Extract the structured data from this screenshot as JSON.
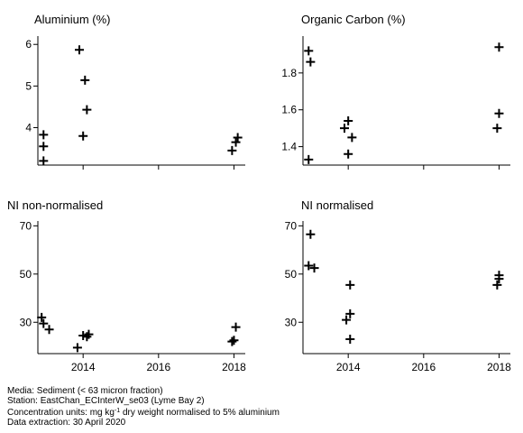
{
  "chart_data": [
    {
      "type": "scatter",
      "title": "Aluminium (%)",
      "xlim": [
        2012.8,
        2018.3
      ],
      "ylim": [
        3.1,
        6.2
      ],
      "x_ticks": [],
      "y_ticks": [
        4,
        5,
        6
      ],
      "points": [
        {
          "x": 2012.95,
          "y": 3.83
        },
        {
          "x": 2012.95,
          "y": 3.55
        },
        {
          "x": 2012.95,
          "y": 3.2
        },
        {
          "x": 2013.9,
          "y": 5.87
        },
        {
          "x": 2014.05,
          "y": 5.14
        },
        {
          "x": 2014.1,
          "y": 4.43
        },
        {
          "x": 2014.0,
          "y": 3.8
        },
        {
          "x": 2017.95,
          "y": 3.45
        },
        {
          "x": 2018.05,
          "y": 3.65
        },
        {
          "x": 2018.1,
          "y": 3.76
        }
      ]
    },
    {
      "type": "scatter",
      "title": "Organic Carbon (%)",
      "xlim": [
        2012.8,
        2018.3
      ],
      "ylim": [
        1.3,
        2.0
      ],
      "x_ticks": [],
      "y_ticks": [
        1.4,
        1.6,
        1.8
      ],
      "points": [
        {
          "x": 2012.95,
          "y": 1.92
        },
        {
          "x": 2013.0,
          "y": 1.86
        },
        {
          "x": 2012.95,
          "y": 1.33
        },
        {
          "x": 2014.0,
          "y": 1.54
        },
        {
          "x": 2013.9,
          "y": 1.5
        },
        {
          "x": 2014.1,
          "y": 1.45
        },
        {
          "x": 2014.0,
          "y": 1.36
        },
        {
          "x": 2018.0,
          "y": 1.94
        },
        {
          "x": 2018.0,
          "y": 1.58
        },
        {
          "x": 2017.95,
          "y": 1.5
        }
      ]
    },
    {
      "type": "scatter",
      "title": "NI non-normalised",
      "xlim": [
        2012.8,
        2018.3
      ],
      "ylim": [
        17,
        72
      ],
      "x_ticks": [
        "2014",
        "2016",
        "2018"
      ],
      "y_ticks": [
        30,
        50,
        70
      ],
      "points": [
        {
          "x": 2012.9,
          "y": 32
        },
        {
          "x": 2012.95,
          "y": 29.5
        },
        {
          "x": 2013.1,
          "y": 27
        },
        {
          "x": 2014.0,
          "y": 24.5
        },
        {
          "x": 2014.15,
          "y": 25
        },
        {
          "x": 2014.1,
          "y": 24
        },
        {
          "x": 2013.85,
          "y": 19.5
        },
        {
          "x": 2018.05,
          "y": 28
        },
        {
          "x": 2018.0,
          "y": 22.5
        },
        {
          "x": 2017.95,
          "y": 22
        }
      ]
    },
    {
      "type": "scatter",
      "title": "NI normalised",
      "xlim": [
        2012.8,
        2018.3
      ],
      "ylim": [
        17,
        72
      ],
      "x_ticks": [
        "2014",
        "2016",
        "2018"
      ],
      "y_ticks": [
        30,
        50,
        70
      ],
      "points": [
        {
          "x": 2013.0,
          "y": 66.5
        },
        {
          "x": 2012.95,
          "y": 53.5
        },
        {
          "x": 2013.1,
          "y": 52.5
        },
        {
          "x": 2014.05,
          "y": 45.5
        },
        {
          "x": 2014.05,
          "y": 33.5
        },
        {
          "x": 2013.95,
          "y": 31
        },
        {
          "x": 2014.05,
          "y": 23
        },
        {
          "x": 2018.0,
          "y": 49.5
        },
        {
          "x": 2018.0,
          "y": 48
        },
        {
          "x": 2017.95,
          "y": 45.5
        }
      ]
    }
  ],
  "footer": {
    "media": "Media: Sediment (< 63 micron fraction)",
    "station": "Station: EastChan_ECInterW_se03 (Lyme Bay 2)",
    "units_prefix": "Concentration units:  mg kg",
    "units_sup": "-1",
    "units_suffix": " dry weight normalised to 5% aluminium",
    "extraction": "Data extraction: 30 April 2020"
  }
}
